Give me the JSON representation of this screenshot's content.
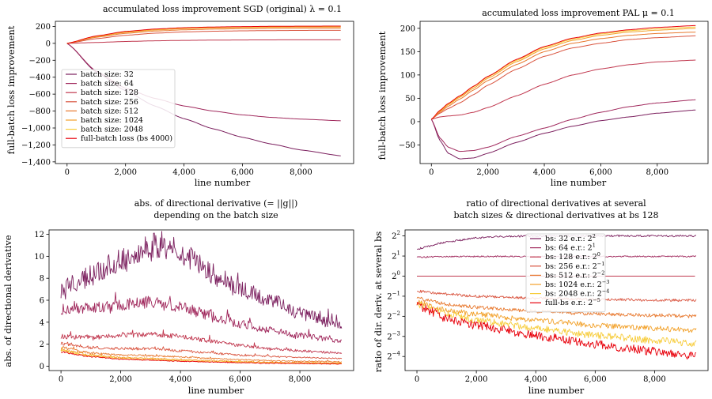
{
  "palette": {
    "bs32": "#7b1f5e",
    "bs64": "#a0285c",
    "bs128": "#c1384f",
    "bs256": "#d9543f",
    "bs512": "#e8792f",
    "bs1024": "#f2a12a",
    "bs2048": "#f7cc3a",
    "full": "#e8000b"
  },
  "chart_data": [
    {
      "type": "line",
      "title": "accumulated loss improvement SGD (original) λ = 0.1",
      "xlabel": "line number",
      "ylabel": "full-batch loss improvement",
      "xlim": [
        -400,
        9800
      ],
      "ylim": [
        -1420,
        260
      ],
      "xticks": [
        0,
        2000,
        4000,
        6000,
        8000
      ],
      "xtick_labels": [
        "0",
        "2,000",
        "4,000",
        "6,000",
        "8,000"
      ],
      "yticks": [
        200,
        0,
        -200,
        -400,
        -600,
        -800,
        -1000,
        -1200,
        -1400
      ],
      "ytick_labels": [
        "200",
        "0",
        "−200",
        "−400",
        "−600",
        "−800",
        "−1,000",
        "−1,200",
        "−1,400"
      ],
      "legend": {
        "position": "center-left",
        "entries": [
          "batch size: 32",
          "batch size: 64",
          "batch size: 128",
          "batch size: 256",
          "batch size: 512",
          "batch size: 1024",
          "batch size: 2048",
          "full-batch loss (bs 4000)"
        ]
      },
      "series": [
        {
          "name": "batch size: 32",
          "color_key": "bs32",
          "x": [
            0,
            1000,
            2000,
            3000,
            4000,
            5000,
            6000,
            7000,
            8000,
            9400
          ],
          "values": [
            0,
            -340,
            -560,
            -740,
            -890,
            -1010,
            -1110,
            -1190,
            -1260,
            -1330
          ]
        },
        {
          "name": "batch size: 64",
          "color_key": "bs64",
          "x": [
            0,
            1000,
            2000,
            3000,
            4000,
            5000,
            6000,
            7000,
            8000,
            9400
          ],
          "values": [
            0,
            -330,
            -530,
            -650,
            -740,
            -800,
            -845,
            -875,
            -895,
            -915
          ]
        },
        {
          "name": "batch size: 128",
          "color_key": "bs128",
          "x": [
            0,
            1000,
            2000,
            3000,
            4000,
            5000,
            6000,
            7000,
            8000,
            9400
          ],
          "values": [
            0,
            10,
            22,
            30,
            35,
            38,
            40,
            41,
            42,
            42
          ]
        },
        {
          "name": "batch size: 256",
          "color_key": "bs256",
          "x": [
            0,
            1000,
            2000,
            3000,
            4000,
            5000,
            6000,
            7000,
            8000,
            9400
          ],
          "values": [
            0,
            55,
            95,
            120,
            135,
            143,
            148,
            151,
            153,
            154
          ]
        },
        {
          "name": "batch size: 512",
          "color_key": "bs512",
          "x": [
            0,
            1000,
            2000,
            3000,
            4000,
            5000,
            6000,
            7000,
            8000,
            9400
          ],
          "values": [
            0,
            72,
            118,
            145,
            160,
            168,
            173,
            176,
            178,
            179
          ]
        },
        {
          "name": "batch size: 1024",
          "color_key": "bs1024",
          "x": [
            0,
            1000,
            2000,
            3000,
            4000,
            5000,
            6000,
            7000,
            8000,
            9400
          ],
          "values": [
            0,
            80,
            130,
            158,
            174,
            182,
            187,
            190,
            192,
            193
          ]
        },
        {
          "name": "batch size: 2048",
          "color_key": "bs2048",
          "x": [
            0,
            1000,
            2000,
            3000,
            4000,
            5000,
            6000,
            7000,
            8000,
            9400
          ],
          "values": [
            0,
            85,
            137,
            165,
            181,
            189,
            194,
            197,
            199,
            200
          ]
        },
        {
          "name": "full-batch loss (bs 4000)",
          "color_key": "full",
          "x": [
            0,
            1000,
            2000,
            3000,
            4000,
            5000,
            6000,
            7000,
            8000,
            9400
          ],
          "values": [
            0,
            88,
            141,
            169,
            185,
            193,
            198,
            201,
            203,
            204
          ]
        }
      ]
    },
    {
      "type": "line",
      "title": "accumulated loss improvement PAL μ = 0.1",
      "xlabel": "line number",
      "ylabel": "full-batch loss improvement",
      "xlim": [
        -400,
        9800
      ],
      "ylim": [
        -90,
        215
      ],
      "xticks": [
        0,
        2000,
        4000,
        6000,
        8000
      ],
      "xtick_labels": [
        "0",
        "2,000",
        "4,000",
        "6,000",
        "8,000"
      ],
      "yticks": [
        200,
        150,
        100,
        50,
        0,
        -50
      ],
      "ytick_labels": [
        "200",
        "150",
        "100",
        "50",
        "0",
        "−50"
      ],
      "series": [
        {
          "color_key": "bs32",
          "x": [
            0,
            300,
            600,
            1000,
            1500,
            2000,
            3000,
            4000,
            5000,
            6000,
            7000,
            8000,
            9400
          ],
          "values": [
            5,
            -40,
            -68,
            -80,
            -78,
            -68,
            -45,
            -25,
            -10,
            2,
            10,
            18,
            25
          ]
        },
        {
          "color_key": "bs64",
          "x": [
            0,
            300,
            600,
            1000,
            1500,
            2000,
            3000,
            4000,
            5000,
            6000,
            7000,
            8000,
            9400
          ],
          "values": [
            5,
            -35,
            -55,
            -64,
            -62,
            -55,
            -32,
            -14,
            5,
            20,
            32,
            40,
            47
          ]
        },
        {
          "color_key": "bs128",
          "x": [
            0,
            300,
            600,
            1000,
            1500,
            2000,
            3000,
            4000,
            5000,
            6000,
            7000,
            8000,
            9400
          ],
          "values": [
            5,
            10,
            12,
            14,
            20,
            30,
            55,
            80,
            100,
            113,
            122,
            128,
            132
          ]
        },
        {
          "color_key": "bs256",
          "x": [
            0,
            300,
            600,
            1000,
            1500,
            2000,
            3000,
            4000,
            5000,
            6000,
            7000,
            8000,
            9400
          ],
          "values": [
            5,
            18,
            28,
            40,
            58,
            78,
            112,
            140,
            158,
            168,
            176,
            180,
            184
          ]
        },
        {
          "color_key": "bs512",
          "x": [
            0,
            300,
            600,
            1000,
            1500,
            2000,
            3000,
            4000,
            5000,
            6000,
            7000,
            8000,
            9400
          ],
          "values": [
            5,
            20,
            33,
            48,
            68,
            88,
            122,
            150,
            168,
            178,
            185,
            189,
            192
          ]
        },
        {
          "color_key": "bs1024",
          "x": [
            0,
            300,
            600,
            1000,
            1500,
            2000,
            3000,
            4000,
            5000,
            6000,
            7000,
            8000,
            9400
          ],
          "values": [
            5,
            22,
            36,
            52,
            72,
            93,
            128,
            156,
            174,
            185,
            192,
            196,
            200
          ]
        },
        {
          "color_key": "bs2048",
          "x": [
            0,
            300,
            600,
            1000,
            1500,
            2000,
            3000,
            4000,
            5000,
            6000,
            7000,
            8000,
            9400
          ],
          "values": [
            5,
            23,
            38,
            54,
            75,
            96,
            131,
            159,
            177,
            188,
            195,
            199,
            203
          ]
        },
        {
          "color_key": "full",
          "x": [
            0,
            300,
            600,
            1000,
            1500,
            2000,
            3000,
            4000,
            5000,
            6000,
            7000,
            8000,
            9400
          ],
          "values": [
            5,
            24,
            39,
            55,
            76,
            97,
            133,
            161,
            179,
            190,
            197,
            202,
            206
          ]
        }
      ]
    },
    {
      "type": "line",
      "title": "abs. of directional derivative (= ||g||)",
      "subtitle": "depending on the batch size",
      "xlabel": "line number",
      "ylabel": "abs. of directional derivative",
      "xlim": [
        -400,
        9800
      ],
      "ylim": [
        -0.4,
        12.4
      ],
      "xticks": [
        0,
        2000,
        4000,
        6000,
        8000
      ],
      "xtick_labels": [
        "0",
        "2,000",
        "4,000",
        "6,000",
        "8,000"
      ],
      "yticks": [
        0,
        2,
        4,
        6,
        8,
        10,
        12
      ],
      "ytick_labels": [
        "0",
        "2",
        "4",
        "6",
        "8",
        "10",
        "12"
      ],
      "series": [
        {
          "color_key": "bs32",
          "noise": 0.12,
          "x": [
            0,
            1000,
            2000,
            3000,
            3500,
            4000,
            5000,
            6000,
            7000,
            8000,
            9400
          ],
          "values": [
            7.0,
            8.2,
            9.6,
            10.8,
            11.0,
            10.2,
            8.5,
            7.0,
            6.0,
            4.8,
            3.6
          ]
        },
        {
          "color_key": "bs64",
          "noise": 0.1,
          "x": [
            0,
            1000,
            2000,
            3000,
            4000,
            5000,
            6000,
            7000,
            8000,
            9400
          ],
          "values": [
            5.2,
            5.3,
            5.6,
            5.8,
            5.4,
            4.6,
            3.8,
            3.3,
            2.8,
            2.3
          ]
        },
        {
          "color_key": "bs128",
          "noise": 0.08,
          "x": [
            0,
            1000,
            2000,
            3000,
            4000,
            5000,
            6000,
            7000,
            8000,
            9400
          ],
          "values": [
            2.7,
            2.6,
            2.8,
            2.9,
            2.7,
            2.3,
            1.9,
            1.6,
            1.4,
            1.2
          ]
        },
        {
          "color_key": "bs256",
          "noise": 0.08,
          "x": [
            0,
            1000,
            2000,
            3000,
            4000,
            5000,
            6000,
            7000,
            8000,
            9400
          ],
          "values": [
            2.1,
            1.7,
            1.6,
            1.6,
            1.4,
            1.2,
            1.0,
            0.9,
            0.8,
            0.7
          ]
        },
        {
          "color_key": "bs512",
          "noise": 0.08,
          "x": [
            0,
            1000,
            2000,
            3000,
            4000,
            5000,
            6000,
            7000,
            8000,
            9400
          ],
          "values": [
            1.7,
            1.2,
            1.0,
            0.95,
            0.85,
            0.7,
            0.6,
            0.5,
            0.45,
            0.4
          ]
        },
        {
          "color_key": "bs1024",
          "noise": 0.08,
          "x": [
            0,
            1000,
            2000,
            3000,
            4000,
            5000,
            6000,
            7000,
            8000,
            9400
          ],
          "values": [
            1.5,
            1.0,
            0.8,
            0.7,
            0.6,
            0.5,
            0.42,
            0.36,
            0.32,
            0.28
          ]
        },
        {
          "color_key": "bs2048",
          "noise": 0.08,
          "x": [
            0,
            1000,
            2000,
            3000,
            4000,
            5000,
            6000,
            7000,
            8000,
            9400
          ],
          "values": [
            1.4,
            0.9,
            0.7,
            0.6,
            0.5,
            0.42,
            0.35,
            0.3,
            0.26,
            0.23
          ]
        },
        {
          "color_key": "full",
          "noise": 0.06,
          "x": [
            0,
            1000,
            2000,
            3000,
            4000,
            5000,
            6000,
            7000,
            8000,
            9400
          ],
          "values": [
            1.3,
            0.85,
            0.65,
            0.55,
            0.45,
            0.38,
            0.32,
            0.27,
            0.24,
            0.2
          ]
        }
      ]
    },
    {
      "type": "line",
      "title": "ratio of directional derivatives at several",
      "subtitle": "batch sizes & directional derivatives at bs 128",
      "xlabel": "line number",
      "ylabel": "ratio of dir. deriv. at several bs",
      "yscale": "log2",
      "xlim": [
        -400,
        9800
      ],
      "ylim_exp": [
        -4.7,
        2.3
      ],
      "xticks": [
        0,
        2000,
        4000,
        6000,
        8000
      ],
      "xtick_labels": [
        "0",
        "2,000",
        "4,000",
        "6,000",
        "8,000"
      ],
      "yticks_exp": [
        2,
        1,
        0,
        -1,
        -2,
        -3,
        -4
      ],
      "legend": {
        "position": "top-center",
        "entries": [
          {
            "text": "bs: 32 e.r.: 2",
            "sup": "2"
          },
          {
            "text": "bs: 64 e.r.: 2",
            "sup": "1"
          },
          {
            "text": "bs: 128 e.r.: 2",
            "sup": "0"
          },
          {
            "text": "bs: 256 e.r.: 2",
            "sup": "−1"
          },
          {
            "text": "bs: 512 e.r.: 2",
            "sup": "−2"
          },
          {
            "text": "bs: 1024 e.r.: 2",
            "sup": "−3"
          },
          {
            "text": "bs: 2048 e.r.: 2",
            "sup": "−4"
          },
          {
            "text": "full-bs e.r.: 2",
            "sup": "−5"
          }
        ]
      },
      "series": [
        {
          "color_key": "bs32",
          "noise": 0.02,
          "x": [
            0,
            1000,
            2000,
            3000,
            4000,
            6000,
            8000,
            9400
          ],
          "values": [
            1.35,
            1.7,
            1.9,
            1.98,
            2.0,
            2.0,
            2.0,
            2.0
          ]
        },
        {
          "color_key": "bs64",
          "noise": 0.015,
          "x": [
            0,
            1000,
            2000,
            4000,
            6000,
            8000,
            9400
          ],
          "values": [
            0.95,
            0.97,
            0.98,
            0.98,
            0.98,
            0.98,
            0.98
          ]
        },
        {
          "color_key": "bs128",
          "noise": 0.0,
          "x": [
            0,
            9400
          ],
          "values": [
            0,
            0
          ]
        },
        {
          "color_key": "bs256",
          "noise": 0.03,
          "x": [
            0,
            1000,
            2000,
            4000,
            6000,
            8000,
            9400
          ],
          "values": [
            -0.75,
            -0.9,
            -1.0,
            -1.1,
            -1.15,
            -1.2,
            -1.2
          ]
        },
        {
          "color_key": "bs512",
          "noise": 0.04,
          "x": [
            0,
            1000,
            2000,
            4000,
            6000,
            8000,
            9400
          ],
          "values": [
            -1.1,
            -1.4,
            -1.55,
            -1.75,
            -1.88,
            -1.95,
            -2.0
          ]
        },
        {
          "color_key": "bs1024",
          "noise": 0.06,
          "x": [
            0,
            1000,
            2000,
            4000,
            6000,
            8000,
            9400
          ],
          "values": [
            -1.3,
            -1.7,
            -1.9,
            -2.2,
            -2.45,
            -2.6,
            -2.7
          ]
        },
        {
          "color_key": "bs2048",
          "noise": 0.08,
          "x": [
            0,
            1000,
            2000,
            4000,
            6000,
            8000,
            9400
          ],
          "values": [
            -1.4,
            -1.9,
            -2.2,
            -2.6,
            -2.95,
            -3.2,
            -3.35
          ]
        },
        {
          "color_key": "full",
          "noise": 0.1,
          "x": [
            0,
            1000,
            2000,
            4000,
            6000,
            8000,
            9400
          ],
          "values": [
            -1.45,
            -2.1,
            -2.45,
            -2.95,
            -3.4,
            -3.75,
            -4.0
          ]
        }
      ]
    }
  ]
}
